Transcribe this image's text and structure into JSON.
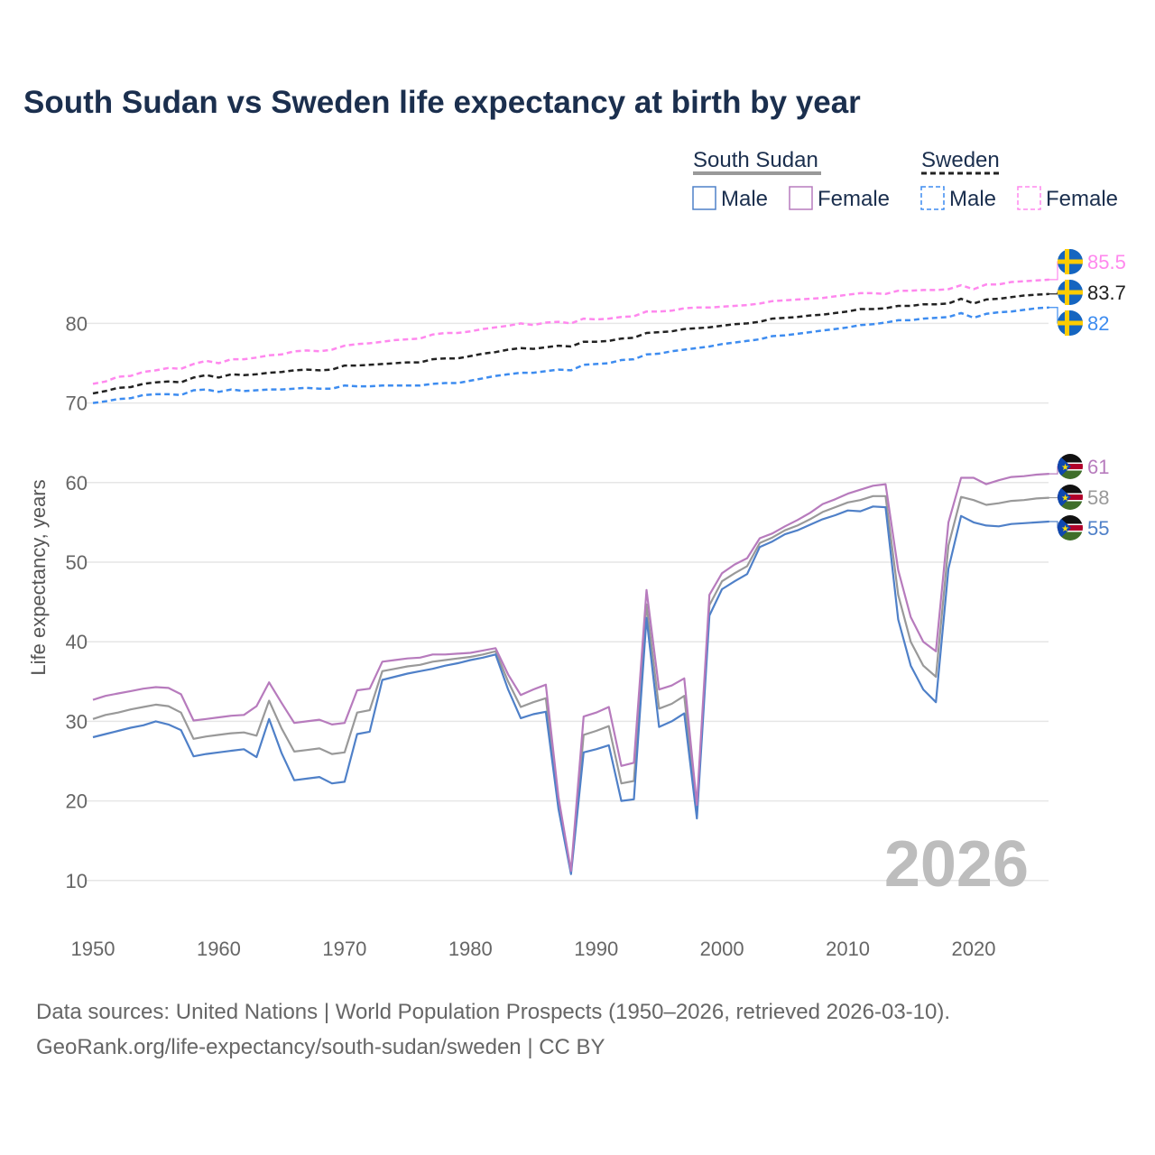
{
  "chart_data": {
    "type": "line",
    "title": "South Sudan vs Sweden life expectancy at birth by year",
    "xlabel": "",
    "ylabel": "Life expectancy, years",
    "xlim": [
      1950,
      2026
    ],
    "ylim": [
      0,
      90
    ],
    "x_ticks": [
      "1950",
      "1960",
      "1970",
      "1980",
      "1990",
      "2000",
      "2010",
      "2020"
    ],
    "y_ticks": [
      "10",
      "20",
      "30",
      "40",
      "50",
      "60",
      "70",
      "80"
    ],
    "grid": true,
    "watermark": "2026",
    "legend": {
      "groups": [
        {
          "name": "South Sudan",
          "items": [
            "Male",
            "Female"
          ]
        },
        {
          "name": "Sweden",
          "items": [
            "Male",
            "Female"
          ]
        }
      ],
      "placement": "top-right"
    },
    "series": [
      {
        "country": "South Sudan",
        "name": "Overall",
        "color": "#999999",
        "dashed": false,
        "end_label": "58",
        "values": [
          30.3,
          30.8,
          31.1,
          31.5,
          31.8,
          32.1,
          31.9,
          31.1,
          27.8,
          28.1,
          28.3,
          28.5,
          28.6,
          28.2,
          32.6,
          29.1,
          26.2,
          26.4,
          26.6,
          25.9,
          26.1,
          31.1,
          31.4,
          36.3,
          36.6,
          36.9,
          37.1,
          37.5,
          37.7,
          37.9,
          38.1,
          38.4,
          38.8,
          35.0,
          31.8,
          32.4,
          32.9,
          19.7,
          11.0,
          28.3,
          28.8,
          29.4,
          22.2,
          22.5,
          44.7,
          31.6,
          32.2,
          33.2,
          18.6,
          44.6,
          47.6,
          48.6,
          49.5,
          52.4,
          53.1,
          54.0,
          54.6,
          55.4,
          56.3,
          56.9,
          57.5,
          57.8,
          58.3,
          58.3,
          45.9,
          40.0,
          37.0,
          35.6,
          52.1,
          58.2,
          57.8,
          57.2,
          57.4,
          57.7,
          57.8,
          58.0,
          58.1
        ]
      },
      {
        "country": "South Sudan",
        "name": "Male",
        "color": "#4f80c8",
        "dashed": false,
        "end_label": "55",
        "values": [
          28.0,
          28.4,
          28.8,
          29.2,
          29.5,
          30.0,
          29.6,
          28.9,
          25.6,
          25.9,
          26.1,
          26.3,
          26.5,
          25.5,
          30.3,
          26.0,
          22.6,
          22.8,
          23.0,
          22.2,
          22.4,
          28.4,
          28.7,
          35.2,
          35.6,
          36.0,
          36.3,
          36.6,
          37.0,
          37.3,
          37.7,
          38.0,
          38.4,
          34.0,
          30.4,
          30.9,
          31.2,
          19.0,
          10.8,
          26.1,
          26.5,
          27.0,
          20.0,
          20.2,
          43.0,
          29.3,
          30.0,
          31.0,
          17.8,
          43.3,
          46.6,
          47.6,
          48.5,
          51.9,
          52.6,
          53.5,
          54.0,
          54.7,
          55.4,
          55.9,
          56.5,
          56.4,
          57.0,
          56.9,
          42.8,
          37.0,
          34.0,
          32.4,
          49.2,
          55.8,
          55.0,
          54.6,
          54.5,
          54.8,
          54.9,
          55.0,
          55.1
        ]
      },
      {
        "country": "South Sudan",
        "name": "Female",
        "color": "#b77bbd",
        "dashed": false,
        "end_label": "61",
        "values": [
          32.7,
          33.2,
          33.5,
          33.8,
          34.1,
          34.3,
          34.2,
          33.4,
          30.1,
          30.3,
          30.5,
          30.7,
          30.8,
          31.9,
          34.9,
          32.3,
          29.8,
          30.0,
          30.2,
          29.6,
          29.8,
          33.9,
          34.1,
          37.5,
          37.7,
          37.9,
          38.0,
          38.4,
          38.4,
          38.5,
          38.6,
          38.9,
          39.2,
          35.9,
          33.3,
          34.0,
          34.6,
          20.5,
          11.2,
          30.6,
          31.1,
          31.8,
          24.4,
          24.8,
          46.5,
          34.0,
          34.5,
          35.4,
          19.5,
          45.9,
          48.6,
          49.7,
          50.5,
          53.0,
          53.6,
          54.5,
          55.3,
          56.2,
          57.3,
          57.9,
          58.6,
          59.1,
          59.6,
          59.8,
          49.0,
          43.1,
          40.0,
          38.8,
          55.0,
          60.6,
          60.6,
          59.8,
          60.3,
          60.7,
          60.8,
          61.0,
          61.1
        ]
      },
      {
        "country": "Sweden",
        "name": "Overall",
        "color": "#222222",
        "dashed": true,
        "end_label": "83.7",
        "values": [
          71.2,
          71.5,
          71.9,
          72.0,
          72.4,
          72.6,
          72.7,
          72.6,
          73.2,
          73.5,
          73.2,
          73.6,
          73.5,
          73.6,
          73.8,
          73.9,
          74.1,
          74.2,
          74.1,
          74.2,
          74.7,
          74.7,
          74.8,
          74.9,
          75.0,
          75.1,
          75.1,
          75.5,
          75.6,
          75.6,
          75.9,
          76.2,
          76.4,
          76.7,
          76.9,
          76.8,
          77.0,
          77.2,
          77.1,
          77.7,
          77.7,
          77.8,
          78.1,
          78.2,
          78.8,
          78.9,
          79.0,
          79.3,
          79.4,
          79.5,
          79.7,
          79.9,
          80.0,
          80.2,
          80.6,
          80.7,
          80.8,
          81.0,
          81.1,
          81.3,
          81.5,
          81.8,
          81.8,
          81.9,
          82.2,
          82.2,
          82.4,
          82.4,
          82.5,
          83.1,
          82.5,
          83.0,
          83.1,
          83.3,
          83.5,
          83.6,
          83.7
        ]
      },
      {
        "country": "Sweden",
        "name": "Male",
        "color": "#3d8cf0",
        "dashed": true,
        "end_label": "82",
        "values": [
          70.0,
          70.2,
          70.5,
          70.6,
          71.0,
          71.1,
          71.1,
          71.0,
          71.6,
          71.7,
          71.4,
          71.7,
          71.5,
          71.6,
          71.7,
          71.7,
          71.8,
          71.9,
          71.8,
          71.8,
          72.2,
          72.1,
          72.1,
          72.2,
          72.2,
          72.2,
          72.2,
          72.4,
          72.5,
          72.5,
          72.8,
          73.1,
          73.4,
          73.6,
          73.8,
          73.8,
          74.0,
          74.2,
          74.1,
          74.8,
          74.9,
          75.0,
          75.4,
          75.5,
          76.1,
          76.2,
          76.5,
          76.7,
          76.9,
          77.1,
          77.4,
          77.6,
          77.8,
          78.0,
          78.4,
          78.5,
          78.7,
          78.9,
          79.1,
          79.3,
          79.5,
          79.8,
          79.9,
          80.1,
          80.4,
          80.4,
          80.6,
          80.7,
          80.8,
          81.3,
          80.7,
          81.2,
          81.4,
          81.5,
          81.7,
          81.9,
          82.0
        ]
      },
      {
        "country": "Sweden",
        "name": "Female",
        "color": "#ff88ee",
        "dashed": true,
        "end_label": "85.5",
        "values": [
          72.4,
          72.7,
          73.3,
          73.4,
          73.9,
          74.1,
          74.4,
          74.3,
          74.9,
          75.3,
          75.0,
          75.5,
          75.5,
          75.7,
          76.0,
          76.1,
          76.5,
          76.6,
          76.5,
          76.7,
          77.2,
          77.4,
          77.5,
          77.7,
          77.9,
          78.0,
          78.1,
          78.6,
          78.8,
          78.8,
          79.0,
          79.3,
          79.5,
          79.7,
          80.0,
          79.8,
          80.1,
          80.2,
          80.0,
          80.6,
          80.5,
          80.6,
          80.8,
          80.9,
          81.5,
          81.5,
          81.6,
          81.9,
          82.0,
          82.0,
          82.1,
          82.2,
          82.3,
          82.5,
          82.8,
          82.9,
          83.0,
          83.1,
          83.2,
          83.4,
          83.6,
          83.8,
          83.8,
          83.7,
          84.1,
          84.1,
          84.2,
          84.2,
          84.3,
          84.8,
          84.3,
          84.9,
          84.9,
          85.2,
          85.3,
          85.4,
          85.5
        ]
      }
    ]
  },
  "footer": {
    "source_line": "Data sources: United Nations | World Population Prospects (1950–2026, retrieved 2026-03-10).",
    "url_line": "GeoRank.org/life-expectancy/south-sudan/sweden | CC BY"
  }
}
